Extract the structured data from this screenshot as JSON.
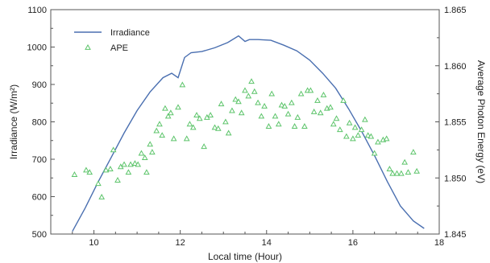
{
  "chart_data": {
    "type": "line+scatter",
    "title": "",
    "xlabel": "Local time (Hour)",
    "ylabel_left": "Irradiance (W/m²)",
    "ylabel_right": "Average Photon Energy (eV)",
    "xlim": [
      9,
      18
    ],
    "ylim_left": [
      500,
      1100
    ],
    "ylim_right": [
      1.845,
      1.865
    ],
    "x_ticks": [
      10,
      12,
      14,
      16,
      18
    ],
    "y_ticks_left": [
      500,
      600,
      700,
      800,
      900,
      1000,
      1100
    ],
    "y_ticks_right": [
      "1.845",
      "1.850",
      "1.855",
      "1.860",
      "1.865"
    ],
    "grid": false,
    "legend_position": "top-left",
    "colors": {
      "irradiance": "#4a6fb0",
      "ape": "#5cc46a",
      "axis": "#555555"
    },
    "series": [
      {
        "name": "Irradiance",
        "kind": "line",
        "axis": "left",
        "x": [
          9.5,
          9.8,
          10.1,
          10.4,
          10.7,
          11.0,
          11.3,
          11.6,
          11.8,
          11.95,
          12.1,
          12.25,
          12.5,
          12.8,
          13.1,
          13.35,
          13.5,
          13.6,
          13.8,
          14.1,
          14.4,
          14.7,
          15.0,
          15.3,
          15.6,
          15.9,
          16.2,
          16.5,
          16.8,
          17.1,
          17.4,
          17.65
        ],
        "y": [
          507,
          570,
          640,
          705,
          770,
          830,
          880,
          918,
          930,
          918,
          972,
          985,
          988,
          998,
          1012,
          1030,
          1015,
          1020,
          1020,
          1018,
          1005,
          990,
          965,
          930,
          890,
          835,
          775,
          710,
          640,
          575,
          535,
          515
        ]
      },
      {
        "name": "APE",
        "kind": "scatter",
        "marker": "triangle-open",
        "axis": "right",
        "x": [
          9.55,
          9.82,
          9.9,
          10.1,
          10.18,
          10.28,
          10.38,
          10.45,
          10.55,
          10.62,
          10.7,
          10.8,
          10.85,
          10.95,
          11.02,
          11.1,
          11.18,
          11.22,
          11.3,
          11.35,
          11.45,
          11.52,
          11.58,
          11.65,
          11.72,
          11.78,
          11.85,
          11.95,
          12.05,
          12.15,
          12.22,
          12.3,
          12.38,
          12.45,
          12.55,
          12.62,
          12.7,
          12.8,
          12.88,
          12.95,
          13.05,
          13.12,
          13.2,
          13.28,
          13.35,
          13.42,
          13.5,
          13.58,
          13.65,
          13.72,
          13.8,
          13.88,
          13.95,
          14.05,
          14.12,
          14.2,
          14.28,
          14.35,
          14.42,
          14.5,
          14.58,
          14.65,
          14.72,
          14.8,
          14.88,
          14.95,
          15.02,
          15.1,
          15.18,
          15.25,
          15.32,
          15.4,
          15.48,
          15.55,
          15.62,
          15.7,
          15.78,
          15.85,
          15.92,
          16.0,
          16.05,
          16.12,
          16.2,
          16.28,
          16.35,
          16.42,
          16.5,
          16.58,
          16.7,
          16.78,
          16.85,
          16.92,
          17.02,
          17.12,
          17.2,
          17.28,
          17.4,
          17.48
        ],
        "y": [
          1.8503,
          1.8507,
          1.8505,
          1.8495,
          1.8483,
          1.8507,
          1.8508,
          1.8525,
          1.8498,
          1.851,
          1.8512,
          1.8505,
          1.8512,
          1.8513,
          1.8512,
          1.8522,
          1.8518,
          1.8505,
          1.853,
          1.8523,
          1.8542,
          1.8548,
          1.8538,
          1.8562,
          1.8555,
          1.8558,
          1.8535,
          1.8563,
          1.8583,
          1.8535,
          1.8548,
          1.8545,
          1.8556,
          1.8553,
          1.8528,
          1.8554,
          1.8556,
          1.8545,
          1.8544,
          1.8566,
          1.855,
          1.854,
          1.856,
          1.857,
          1.8568,
          1.8558,
          1.8578,
          1.8573,
          1.8586,
          1.8577,
          1.8567,
          1.8555,
          1.8564,
          1.8546,
          1.8575,
          1.8555,
          1.8548,
          1.8565,
          1.8564,
          1.8557,
          1.8567,
          1.8546,
          1.8554,
          1.8575,
          1.8546,
          1.8578,
          1.8578,
          1.8559,
          1.8569,
          1.8558,
          1.8574,
          1.8562,
          1.8563,
          1.8548,
          1.8553,
          1.8543,
          1.8569,
          1.8537,
          1.8549,
          1.8535,
          1.8545,
          1.8538,
          1.8543,
          1.8552,
          1.8538,
          1.8537,
          1.8522,
          1.8532,
          1.8534,
          1.8535,
          1.8508,
          1.8504,
          1.8504,
          1.8504,
          1.8514,
          1.8505,
          1.8523,
          1.8506
        ]
      }
    ]
  }
}
